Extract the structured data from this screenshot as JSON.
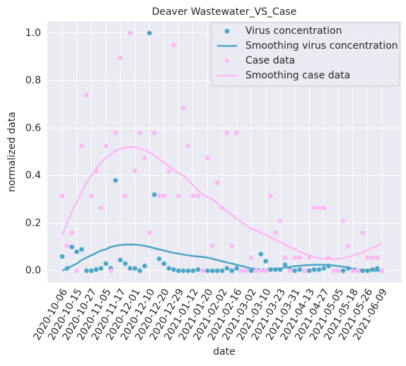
{
  "chart_data": {
    "type": "scatter",
    "title": "Deaver Wastewater_VS_Case",
    "xlabel": "date",
    "ylabel": "normalized data",
    "x": [
      0,
      1,
      2,
      3,
      4,
      5,
      6,
      7,
      8,
      9,
      10,
      11,
      12,
      13,
      14,
      15,
      16,
      17,
      18,
      19,
      20,
      21,
      22,
      23,
      24,
      25,
      26,
      27,
      28,
      29,
      30,
      31,
      32,
      33,
      34,
      35,
      36,
      37,
      38,
      39,
      40,
      41,
      42,
      43,
      44,
      45,
      46,
      47,
      48,
      49,
      50,
      51,
      52,
      53,
      54,
      55,
      56,
      57,
      58,
      59,
      60,
      61,
      62,
      63,
      64,
      65,
      66
    ],
    "series": [
      {
        "name": "Virus concentration",
        "type": "scatter",
        "color": "#4ba6c6",
        "values": [
          0.06,
          0.01,
          0.1,
          0.08,
          0.09,
          0.0,
          0.0,
          0.005,
          0.01,
          0.03,
          0.01,
          0.38,
          0.045,
          0.03,
          0.01,
          0.01,
          0.0,
          0.02,
          1.0,
          0.32,
          0.05,
          0.03,
          0.01,
          0.005,
          0.0,
          0.0,
          0.0,
          0.0,
          0.005,
          0.0,
          0.0,
          0.0,
          0.0,
          0.0,
          0.01,
          0.0,
          0.01,
          0.0,
          0.0,
          0.0,
          0.0,
          0.07,
          0.04,
          0.005,
          0.005,
          0.005,
          0.025,
          0.005,
          0.0,
          0.005,
          0.0,
          0.0,
          0.005,
          0.005,
          0.01,
          0.02,
          0.0,
          0.0,
          0.0,
          0.01,
          0.0,
          0.0,
          0.0,
          0.0,
          0.005,
          0.01,
          0.0
        ]
      },
      {
        "name": "Smoothing virus concentration",
        "type": "line",
        "color": "#4ba6c6",
        "values": [
          0.0,
          0.01,
          0.02,
          0.03,
          0.045,
          0.055,
          0.065,
          0.075,
          0.085,
          0.09,
          0.1,
          0.105,
          0.108,
          0.11,
          0.11,
          0.11,
          0.108,
          0.105,
          0.1,
          0.095,
          0.09,
          0.085,
          0.08,
          0.075,
          0.072,
          0.068,
          0.065,
          0.062,
          0.06,
          0.058,
          0.055,
          0.05,
          0.045,
          0.04,
          0.035,
          0.03,
          0.025,
          0.02,
          0.015,
          0.01,
          0.007,
          0.005,
          0.005,
          0.005,
          0.007,
          0.01,
          0.013,
          0.016,
          0.019,
          0.021,
          0.023,
          0.024,
          0.025,
          0.025,
          0.025,
          0.024,
          0.022,
          0.02,
          0.017,
          0.013,
          0.009,
          0.005,
          0.002,
          0.0,
          0.0,
          0.0,
          0.0
        ]
      },
      {
        "name": "Case data",
        "type": "scatter",
        "color": "#ffb7f7",
        "values": [
          0.315,
          0.105,
          0.16,
          0.0,
          0.525,
          0.74,
          0.315,
          0.42,
          0.265,
          0.525,
          0.0,
          0.58,
          0.895,
          0.315,
          1.0,
          0.42,
          0.58,
          0.475,
          0.16,
          0.58,
          0.315,
          0.315,
          0.42,
          0.95,
          0.315,
          0.685,
          0.525,
          0.315,
          0.315,
          0.0,
          0.475,
          0.105,
          0.37,
          0.265,
          0.58,
          0.105,
          0.58,
          0.0,
          0.0,
          0.055,
          0.0,
          0.0,
          0.0,
          0.315,
          0.16,
          0.21,
          0.055,
          0.0,
          0.055,
          0.055,
          0.0,
          0.055,
          0.265,
          0.265,
          0.265,
          0.055,
          0.0,
          0.0,
          0.21,
          0.105,
          0.0,
          0.0,
          0.16,
          0.055,
          0.055,
          0.055,
          0.0
        ]
      },
      {
        "name": "Smoothing case data",
        "type": "line",
        "color": "#ffb7f7",
        "values": [
          0.15,
          0.2,
          0.25,
          0.29,
          0.33,
          0.37,
          0.4,
          0.43,
          0.455,
          0.475,
          0.49,
          0.505,
          0.513,
          0.518,
          0.52,
          0.52,
          0.515,
          0.508,
          0.498,
          0.485,
          0.47,
          0.455,
          0.44,
          0.425,
          0.41,
          0.4,
          0.38,
          0.36,
          0.34,
          0.32,
          0.31,
          0.3,
          0.285,
          0.265,
          0.25,
          0.235,
          0.22,
          0.205,
          0.19,
          0.175,
          0.17,
          0.16,
          0.15,
          0.14,
          0.13,
          0.12,
          0.11,
          0.1,
          0.09,
          0.08,
          0.072,
          0.065,
          0.058,
          0.053,
          0.05,
          0.048,
          0.048,
          0.05,
          0.053,
          0.058,
          0.064,
          0.07,
          0.078,
          0.087,
          0.096,
          0.105,
          0.115
        ]
      }
    ],
    "xlim": [
      -3.07,
      69.93
    ],
    "xticks": [
      {
        "value": 0,
        "label": "2020-10-06"
      },
      {
        "value": 3,
        "label": "2020-10-15"
      },
      {
        "value": 6,
        "label": "2020-10-27"
      },
      {
        "value": 9,
        "label": "2020-11-05"
      },
      {
        "value": 12,
        "label": "2020-11-17"
      },
      {
        "value": 15,
        "label": "2020-12-01"
      },
      {
        "value": 18,
        "label": "2020-12-10"
      },
      {
        "value": 21,
        "label": "2020-12-20"
      },
      {
        "value": 24,
        "label": "2020-12-29"
      },
      {
        "value": 27,
        "label": "2021-01-12"
      },
      {
        "value": 30,
        "label": "2021-01-20"
      },
      {
        "value": 33,
        "label": "2021-02-02"
      },
      {
        "value": 36,
        "label": "2021-02-16"
      },
      {
        "value": 39,
        "label": "2021-03-02"
      },
      {
        "value": 42,
        "label": "2021-03-10"
      },
      {
        "value": 45,
        "label": "2021-03-23"
      },
      {
        "value": 48,
        "label": "2021-03-31"
      },
      {
        "value": 51,
        "label": "2021-04-13"
      },
      {
        "value": 54,
        "label": "2021-04-27"
      },
      {
        "value": 57,
        "label": "2021-05-05"
      },
      {
        "value": 60,
        "label": "2021-05-18"
      },
      {
        "value": 63,
        "label": "2021-05-26"
      },
      {
        "value": 66,
        "label": "2021-06-09"
      }
    ],
    "ylim": [
      -0.05,
      1.05
    ],
    "yticks": [
      {
        "value": 0,
        "label": "0.0"
      },
      0.2,
      0.4,
      0.6,
      0.8,
      {
        "value": 1,
        "label": "1.0"
      }
    ],
    "grid": true,
    "legend": "upper right"
  }
}
